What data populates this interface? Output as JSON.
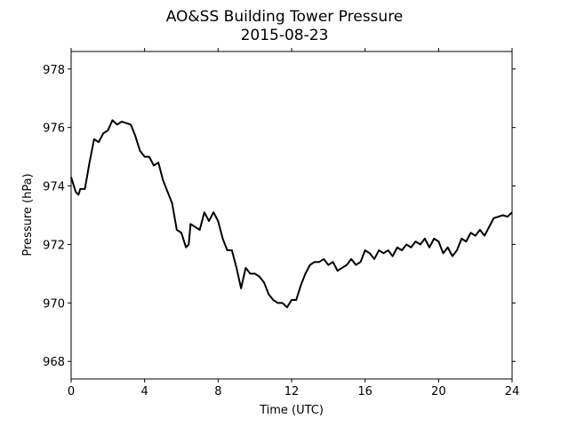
{
  "chart_data": {
    "type": "line",
    "title": "AO&SS Building Tower Pressure",
    "subtitle": "2015-08-23",
    "xlabel": "Time (UTC)",
    "ylabel": "Pressure (hPa)",
    "x": [
      0,
      0.25,
      0.4,
      0.5,
      0.75,
      1.0,
      1.25,
      1.5,
      1.75,
      2.0,
      2.25,
      2.5,
      2.75,
      3.0,
      3.25,
      3.5,
      3.75,
      4.0,
      4.25,
      4.5,
      4.75,
      5.0,
      5.25,
      5.5,
      5.75,
      6.0,
      6.25,
      6.4,
      6.5,
      6.75,
      7.0,
      7.25,
      7.5,
      7.75,
      8.0,
      8.25,
      8.5,
      8.75,
      9.0,
      9.25,
      9.5,
      9.75,
      10.0,
      10.25,
      10.5,
      10.75,
      11.0,
      11.25,
      11.5,
      11.75,
      12.0,
      12.25,
      12.5,
      12.75,
      13.0,
      13.25,
      13.5,
      13.75,
      14.0,
      14.25,
      14.5,
      14.75,
      15.0,
      15.25,
      15.5,
      15.75,
      16.0,
      16.25,
      16.5,
      16.75,
      17.0,
      17.25,
      17.5,
      17.75,
      18.0,
      18.25,
      18.5,
      18.75,
      19.0,
      19.25,
      19.5,
      19.75,
      20.0,
      20.25,
      20.5,
      20.75,
      21.0,
      21.25,
      21.5,
      21.75,
      22.0,
      22.25,
      22.5,
      22.75,
      23.0,
      23.25,
      23.5,
      23.75,
      24.0
    ],
    "series": [
      {
        "name": "Pressure",
        "color": "#000000",
        "values": [
          974.3,
          973.8,
          973.7,
          973.9,
          973.9,
          974.8,
          975.6,
          975.5,
          975.8,
          975.9,
          976.25,
          976.1,
          976.2,
          976.15,
          976.1,
          975.7,
          975.2,
          975.0,
          975.0,
          974.7,
          974.8,
          974.2,
          973.8,
          973.4,
          972.5,
          972.4,
          971.9,
          972.0,
          972.7,
          972.6,
          972.5,
          973.1,
          972.8,
          973.1,
          972.8,
          972.2,
          971.8,
          971.8,
          971.2,
          970.5,
          971.2,
          971.0,
          971.0,
          970.9,
          970.7,
          970.3,
          970.1,
          970.0,
          970.0,
          969.85,
          970.1,
          970.1,
          970.6,
          971.0,
          971.3,
          971.4,
          971.4,
          971.5,
          971.3,
          971.4,
          971.1,
          971.2,
          971.3,
          971.5,
          971.3,
          971.4,
          971.8,
          971.7,
          971.5,
          971.8,
          971.7,
          971.8,
          971.6,
          971.9,
          971.8,
          972.0,
          971.9,
          972.1,
          972.0,
          972.2,
          971.9,
          972.2,
          972.1,
          971.7,
          971.9,
          971.6,
          971.8,
          972.2,
          972.1,
          972.4,
          972.3,
          972.5,
          972.3,
          972.6,
          972.9,
          972.95,
          973.0,
          972.95,
          973.1
        ]
      }
    ],
    "xlim": [
      0,
      24
    ],
    "xticks": [
      0,
      4,
      8,
      12,
      16,
      20,
      24
    ],
    "ylim": [
      967.4,
      978.6
    ],
    "yticks": [
      968,
      970,
      972,
      974,
      976,
      978
    ],
    "grid": false
  }
}
